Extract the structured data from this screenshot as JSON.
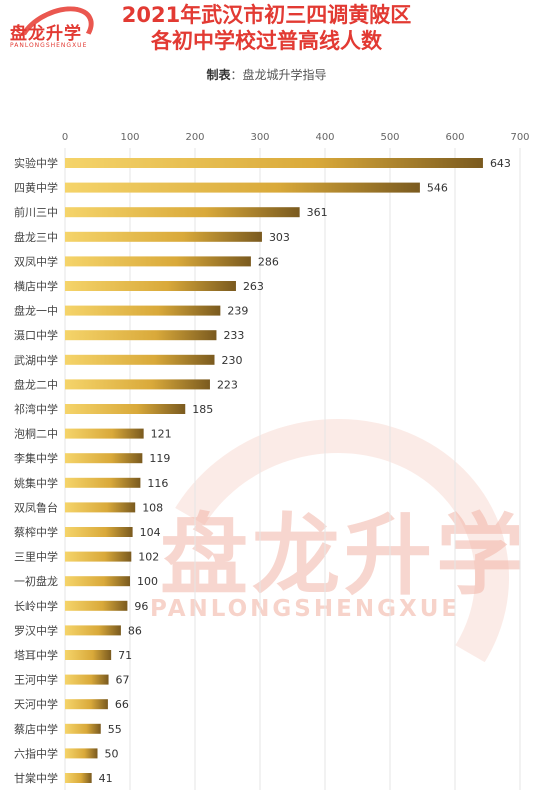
{
  "logo": {
    "name": "盘龙升学",
    "sub": "PANLONGSHENGXUE"
  },
  "header": {
    "title_line1": "2021年武汉市初三四调黄陂区",
    "title_line2": "各初中学校过普高线人数",
    "maker_label": "制表",
    "maker_value": "盘龙城升学指导"
  },
  "watermark": {
    "big": "盘龙升学",
    "small": "PANLONGSHENGXUE"
  },
  "colors": {
    "title": "#e23a33",
    "bar_light": "#f5d46a",
    "bar_dark": "#7a5a1f",
    "axis_text": "#666666",
    "grid": "#e6e6e6"
  },
  "chart_data": {
    "type": "bar",
    "orientation": "horizontal",
    "xlim": [
      0,
      700
    ],
    "xticks": [
      0,
      100,
      200,
      300,
      400,
      500,
      600,
      700
    ],
    "grid": true,
    "categories": [
      "实验中学",
      "四黄中学",
      "前川三中",
      "盘龙三中",
      "双凤中学",
      "横店中学",
      "盘龙一中",
      "滠口中学",
      "武湖中学",
      "盘龙二中",
      "祁湾中学",
      "泡桐二中",
      "李集中学",
      "姚集中学",
      "双凤鲁台",
      "蔡榨中学",
      "三里中学",
      "一初盘龙",
      "长岭中学",
      "罗汉中学",
      "塔耳中学",
      "王河中学",
      "天河中学",
      "蔡店中学",
      "六指中学",
      "甘棠中学"
    ],
    "values": [
      643,
      546,
      361,
      303,
      286,
      263,
      239,
      233,
      230,
      223,
      185,
      121,
      119,
      116,
      108,
      104,
      102,
      100,
      96,
      86,
      71,
      67,
      66,
      55,
      50,
      41
    ]
  }
}
